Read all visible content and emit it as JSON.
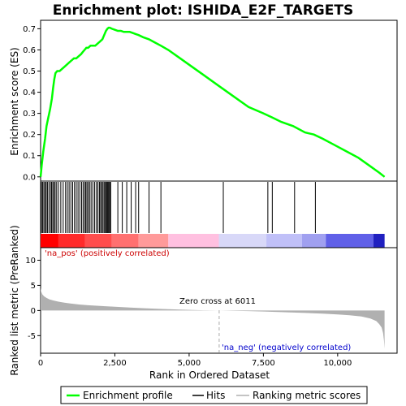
{
  "chart_data": {
    "type": "line",
    "title": "Enrichment plot: ISHIDA_E2F_TARGETS",
    "top_panel": {
      "ylabel": "Enrichment score (ES)",
      "yticks": [
        "0.0",
        "0.1",
        "0.2",
        "0.3",
        "0.4",
        "0.5",
        "0.6",
        "0.7"
      ],
      "ylim": [
        -0.02,
        0.74
      ],
      "series": [
        {
          "name": "Enrichment profile",
          "color": "#00ff00",
          "x": [
            0,
            40,
            90,
            150,
            200,
            260,
            320,
            380,
            420,
            460,
            500,
            560,
            640,
            720,
            800,
            880,
            960,
            1040,
            1120,
            1200,
            1280,
            1360,
            1420,
            1480,
            1540,
            1600,
            1680,
            1760,
            1840,
            1920,
            2000,
            2080,
            2140,
            2200,
            2250,
            2290,
            2330,
            2400,
            2500,
            2600,
            2700,
            2800,
            2900,
            3000,
            3100,
            3200,
            3300,
            3450,
            3650,
            3850,
            4050,
            4300,
            4600,
            5000,
            5500,
            6000,
            6500,
            7000,
            7500,
            7800,
            8100,
            8500,
            8900,
            9200,
            9500,
            9900,
            10300,
            10700,
            11100,
            11400,
            11580
          ],
          "y": [
            0.0,
            0.06,
            0.12,
            0.18,
            0.24,
            0.28,
            0.32,
            0.37,
            0.42,
            0.46,
            0.49,
            0.5,
            0.5,
            0.51,
            0.52,
            0.53,
            0.54,
            0.55,
            0.56,
            0.56,
            0.57,
            0.58,
            0.59,
            0.6,
            0.61,
            0.61,
            0.62,
            0.62,
            0.62,
            0.63,
            0.64,
            0.65,
            0.67,
            0.69,
            0.7,
            0.705,
            0.705,
            0.7,
            0.695,
            0.69,
            0.69,
            0.685,
            0.685,
            0.685,
            0.68,
            0.675,
            0.67,
            0.66,
            0.65,
            0.635,
            0.62,
            0.6,
            0.57,
            0.53,
            0.48,
            0.43,
            0.38,
            0.33,
            0.3,
            0.28,
            0.26,
            0.24,
            0.21,
            0.2,
            0.18,
            0.15,
            0.12,
            0.09,
            0.05,
            0.02,
            0.0
          ]
        }
      ]
    },
    "hits_panel": {
      "hit_positions": [
        30,
        70,
        110,
        150,
        190,
        230,
        280,
        330,
        370,
        410,
        450,
        490,
        540,
        600,
        680,
        760,
        840,
        900,
        960,
        1020,
        1080,
        1140,
        1200,
        1260,
        1320,
        1380,
        1430,
        1480,
        1520,
        1560,
        1600,
        1650,
        1700,
        1760,
        1820,
        1880,
        1930,
        1980,
        2020,
        2060,
        2100,
        2140,
        2180,
        2210,
        2240,
        2270,
        2300,
        2330,
        2360,
        2600,
        2750,
        2900,
        3050,
        3200,
        3300,
        3650,
        4050,
        6150,
        7650,
        7800,
        8550,
        9250
      ],
      "rank_bar_segments": [
        {
          "from": 0,
          "to": 600,
          "color": "#ff0000"
        },
        {
          "from": 600,
          "to": 1500,
          "color": "#ff2a2a"
        },
        {
          "from": 1500,
          "to": 2400,
          "color": "#ff4d4d"
        },
        {
          "from": 2400,
          "to": 3300,
          "color": "#ff7070"
        },
        {
          "from": 3300,
          "to": 4300,
          "color": "#ff9a9a"
        },
        {
          "from": 4300,
          "to": 6000,
          "color": "#ffc0e0"
        },
        {
          "from": 6000,
          "to": 7600,
          "color": "#d8d8f8"
        },
        {
          "from": 7600,
          "to": 8800,
          "color": "#c0c0f8"
        },
        {
          "from": 8800,
          "to": 9600,
          "color": "#a0a0f0"
        },
        {
          "from": 9600,
          "to": 11200,
          "color": "#6060e8"
        },
        {
          "from": 11200,
          "to": 11580,
          "color": "#2020c0"
        }
      ]
    },
    "bottom_panel": {
      "ylabel": "Ranked list metric (PreRanked)",
      "yticks": [
        "10",
        "5",
        "0",
        "-5"
      ],
      "ylim": [
        -8.5,
        12.5
      ],
      "metric_x": [
        0,
        20,
        60,
        120,
        200,
        300,
        450,
        600,
        800,
        1000,
        1300,
        1600,
        2000,
        2500,
        3000,
        3500,
        4000,
        4500,
        5000,
        5500,
        6011,
        6500,
        7000,
        7500,
        8000,
        8500,
        9000,
        9500,
        10000,
        10400,
        10800,
        11100,
        11300,
        11400,
        11480,
        11530,
        11560,
        11580
      ],
      "metric_y": [
        4.5,
        3.8,
        3.2,
        2.8,
        2.5,
        2.2,
        1.95,
        1.75,
        1.55,
        1.4,
        1.2,
        1.05,
        0.9,
        0.75,
        0.6,
        0.45,
        0.32,
        0.22,
        0.12,
        0.05,
        0.0,
        -0.06,
        -0.12,
        -0.2,
        -0.3,
        -0.4,
        -0.5,
        -0.62,
        -0.78,
        -0.95,
        -1.2,
        -1.6,
        -2.1,
        -2.7,
        -3.4,
        -4.5,
        -6.0,
        -7.6
      ],
      "label_pos": "'na_pos' (positively correlated)",
      "label_neg": "'na_neg' (negatively correlated)",
      "zero_cross_label": "Zero cross at 6011",
      "zero_cross": 6011
    },
    "xlabel": "Rank in Ordered Dataset",
    "xticks": [
      "0",
      "2,500",
      "5,000",
      "7,500",
      "10,000"
    ],
    "xtick_values": [
      0,
      2500,
      5000,
      7500,
      10000
    ],
    "xlim": [
      0,
      12000
    ],
    "legend": {
      "placement": "bottom",
      "items": [
        "Enrichment profile",
        "Hits",
        "Ranking metric scores"
      ]
    },
    "colors": {
      "profile": "#00ff00",
      "hits": "#000000",
      "metric": "#b0b0b0",
      "pos_label": "#cc0000",
      "neg_label": "#0000cc"
    }
  }
}
